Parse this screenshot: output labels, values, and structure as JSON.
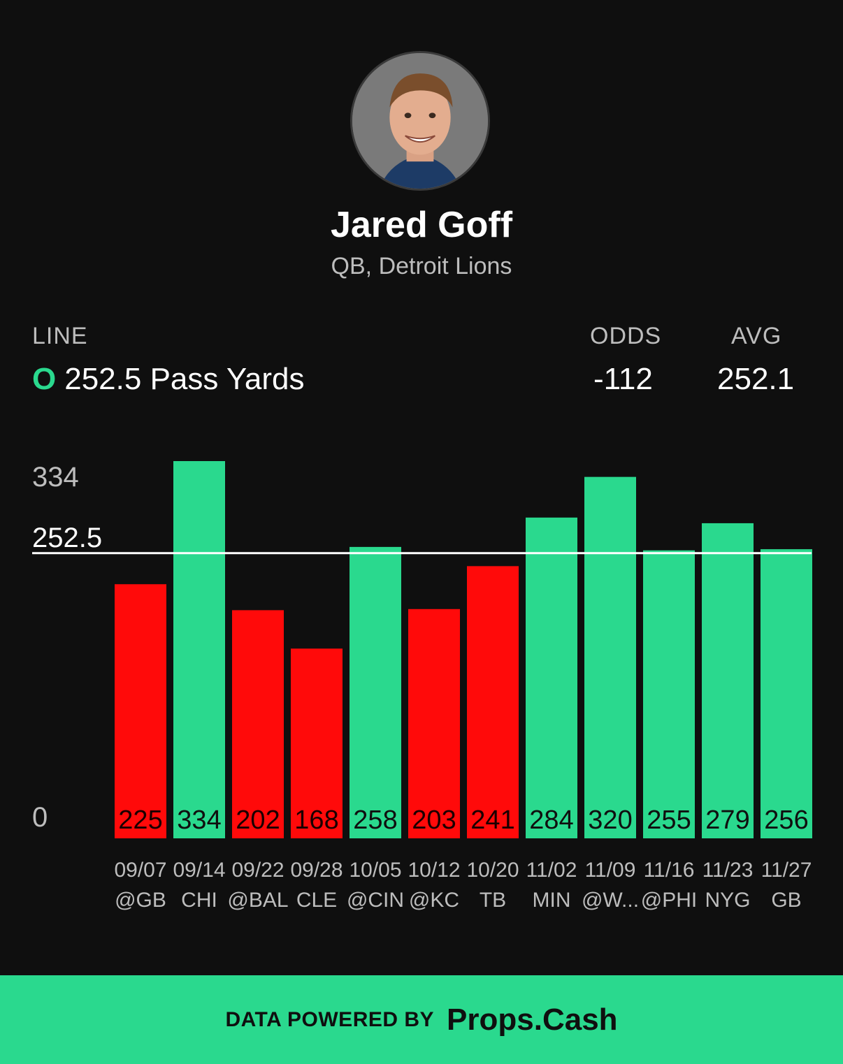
{
  "player": {
    "name": "Jared Goff",
    "subtitle": "QB, Detroit Lions"
  },
  "stats": {
    "line_label": "LINE",
    "line_side": "O",
    "line_value": "252.5 Pass Yards",
    "odds_label": "ODDS",
    "odds_value": "-112",
    "avg_label": "AVG",
    "avg_value": "252.1"
  },
  "chart_data": {
    "type": "bar",
    "categories": [
      "09/07",
      "09/14",
      "09/22",
      "09/28",
      "10/05",
      "10/12",
      "10/20",
      "11/02",
      "11/09",
      "11/16",
      "11/23",
      "11/27"
    ],
    "opponents": [
      "@GB",
      "CHI",
      "@BAL",
      "CLE",
      "@CIN",
      "@KC",
      "TB",
      "MIN",
      "@W...",
      "@PHI",
      "NYG",
      "GB"
    ],
    "values": [
      225,
      334,
      202,
      168,
      258,
      203,
      241,
      284,
      320,
      255,
      279,
      256
    ],
    "line": 252.5,
    "y_tick_labels": [
      "334",
      "252.5",
      "0"
    ],
    "ylim": [
      0,
      334
    ],
    "colors": {
      "over": "#2ad98e",
      "under": "#ff0a0a",
      "line": "#ffffff"
    }
  },
  "footer": {
    "powered_by": "DATA POWERED BY",
    "brand": "Props.Cash"
  },
  "colors": {
    "background": "#0f0f0f",
    "accent": "#2ad98e"
  }
}
